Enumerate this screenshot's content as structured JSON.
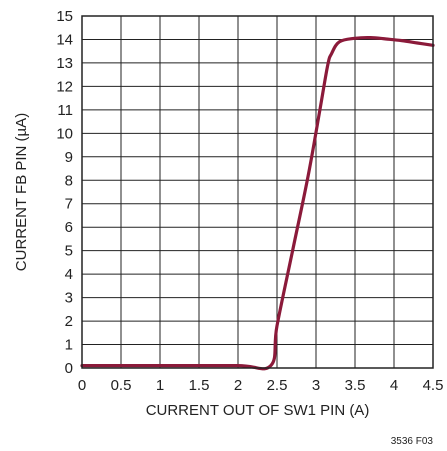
{
  "chart_data": {
    "type": "line",
    "xlabel": "CURRENT OUT OF SW1 PIN (A)",
    "ylabel": "CURRENT FB PIN (µA)",
    "xlim": [
      0,
      4.5
    ],
    "ylim": [
      0,
      15
    ],
    "x_ticks": [
      "0",
      "0.5",
      "1",
      "1.5",
      "2",
      "2.5",
      "3",
      "3.5",
      "4",
      "4.5"
    ],
    "y_ticks": [
      "0",
      "1",
      "2",
      "3",
      "4",
      "5",
      "6",
      "7",
      "8",
      "9",
      "10",
      "11",
      "12",
      "13",
      "14",
      "15"
    ],
    "grid": true,
    "series": [
      {
        "color": "#8b1a3a",
        "x": [
          0,
          1.0,
          2.0,
          2.42,
          2.5,
          2.7,
          2.9,
          3.05,
          3.15,
          3.2,
          3.3,
          3.5,
          3.7,
          3.9,
          4.1,
          4.3,
          4.5
        ],
        "y": [
          0.1,
          0.1,
          0.1,
          0.1,
          1.8,
          5.0,
          8.2,
          11.0,
          12.9,
          13.4,
          13.9,
          14.05,
          14.08,
          14.02,
          13.95,
          13.85,
          13.75
        ]
      }
    ],
    "figure_note": "3536 F03"
  }
}
